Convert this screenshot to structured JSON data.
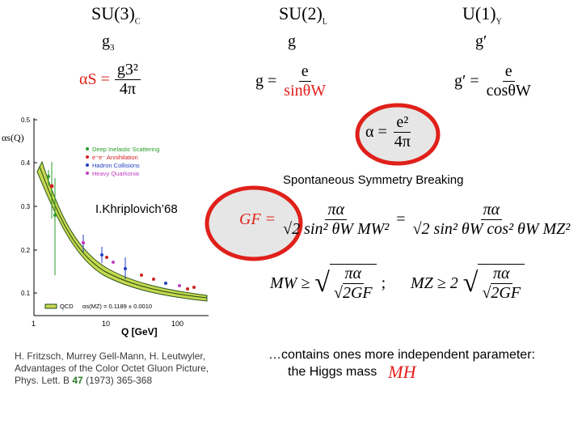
{
  "groups": [
    {
      "name": "SU(3)",
      "sub": "C",
      "coupling": "g",
      "coupling_sub": "3"
    },
    {
      "name": "SU(2)",
      "sub": "L",
      "coupling": "g",
      "coupling_sub": ""
    },
    {
      "name": "U(1)",
      "sub": "Y",
      "coupling": "g′",
      "coupling_sub": ""
    }
  ],
  "formulas": {
    "alpha_s_lhs": "αS =",
    "alpha_s_num": "g3²",
    "alpha_s_den": "4π",
    "g_lhs": "g =",
    "g_num": "e",
    "g_den": "sinθW",
    "gprime_lhs": "g′ =",
    "gprime_num": "e",
    "gprime_den": "cosθW",
    "alpha_lhs": "α =",
    "alpha_num": "e²",
    "alpha_den": "4π"
  },
  "ssb_label": "Spontaneous Symmetry Breaking",
  "khriplovich_label": "I.Khriplovich’68",
  "gf_formula": {
    "lhs": "GF =",
    "frac1_num": "πα",
    "frac1_den": "√2 sin² θW MW²",
    "eq": "=",
    "frac2_num": "πα",
    "frac2_den": "√2 sin² θW cos² θW MZ²"
  },
  "mass_bounds": {
    "mw_lhs": "MW ≥",
    "mw_num": "πα",
    "mw_den": "√2GF",
    "sep": ";",
    "mz_lhs": "MZ ≥ 2",
    "mz_num": "πα",
    "mz_den": "√2GF"
  },
  "plot": {
    "ylabel": "αs(Q)",
    "xlabel": "Q [GeV]",
    "yticks": [
      "0.5",
      "0.4",
      "0.3",
      "0.2",
      "0.1"
    ],
    "xticks": [
      "1",
      "10",
      "100"
    ],
    "legend": [
      {
        "label": "Deep Inelastic Scattering",
        "color": "#2a9a2a"
      },
      {
        "label": "e⁺e⁻ Annihilation",
        "color": "#d02020"
      },
      {
        "label": "Hadron Collisions",
        "color": "#2040c0"
      },
      {
        "label": "Heavy Quarkonia",
        "color": "#c040c0"
      }
    ],
    "qcd_label": "QCD",
    "qcd_value": "αs(MZ) = 0.1189 ± 0.0010"
  },
  "citation": {
    "line1": "H. Fritzsch, Murrey Gell-Mann, H. Leutwyler,",
    "line2": "Advantages of the Color Octet Gluon Picture,",
    "line3_a": "Phys. Lett. B ",
    "line3_vol": "47",
    "line3_b": " (1973) 365-368"
  },
  "higgs_note": {
    "line1": "…contains ones more independent parameter:",
    "line2": "the Higgs mass",
    "mh": "MH"
  },
  "colors": {
    "highlight": "#e0201a",
    "ellipse_fill": "#e6e6e6"
  }
}
